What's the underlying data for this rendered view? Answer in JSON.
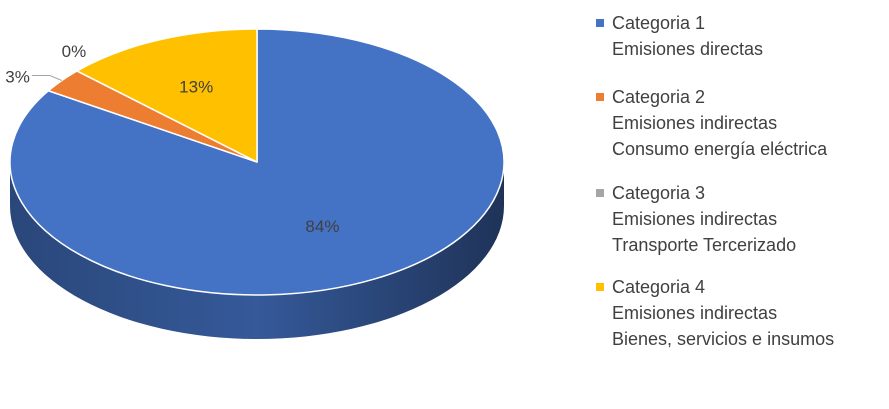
{
  "chart_data": {
    "type": "pie",
    "style": "3d",
    "categories": [
      {
        "label": "Categoria 1",
        "desc": [
          "Emisiones directas"
        ],
        "value": 84,
        "color": "#4472C4",
        "data_label": "84%"
      },
      {
        "label": "Categoria 2",
        "desc": [
          "Emisiones indirectas",
          "Consumo energía eléctrica"
        ],
        "value": 3,
        "color": "#ED7D31",
        "data_label": "3%"
      },
      {
        "label": "Categoria 3",
        "desc": [
          "Emisiones indirectas",
          "Transporte Tercerizado"
        ],
        "value": 0,
        "color": "#A5A5A5",
        "data_label": "0%"
      },
      {
        "label": "Categoria 4",
        "desc": [
          "Emisiones indirectas",
          "Bienes, servicios e insumos"
        ],
        "value": 13,
        "color": "#FFC000",
        "data_label": "13%"
      }
    ],
    "legend_position": "right",
    "title": ""
  }
}
